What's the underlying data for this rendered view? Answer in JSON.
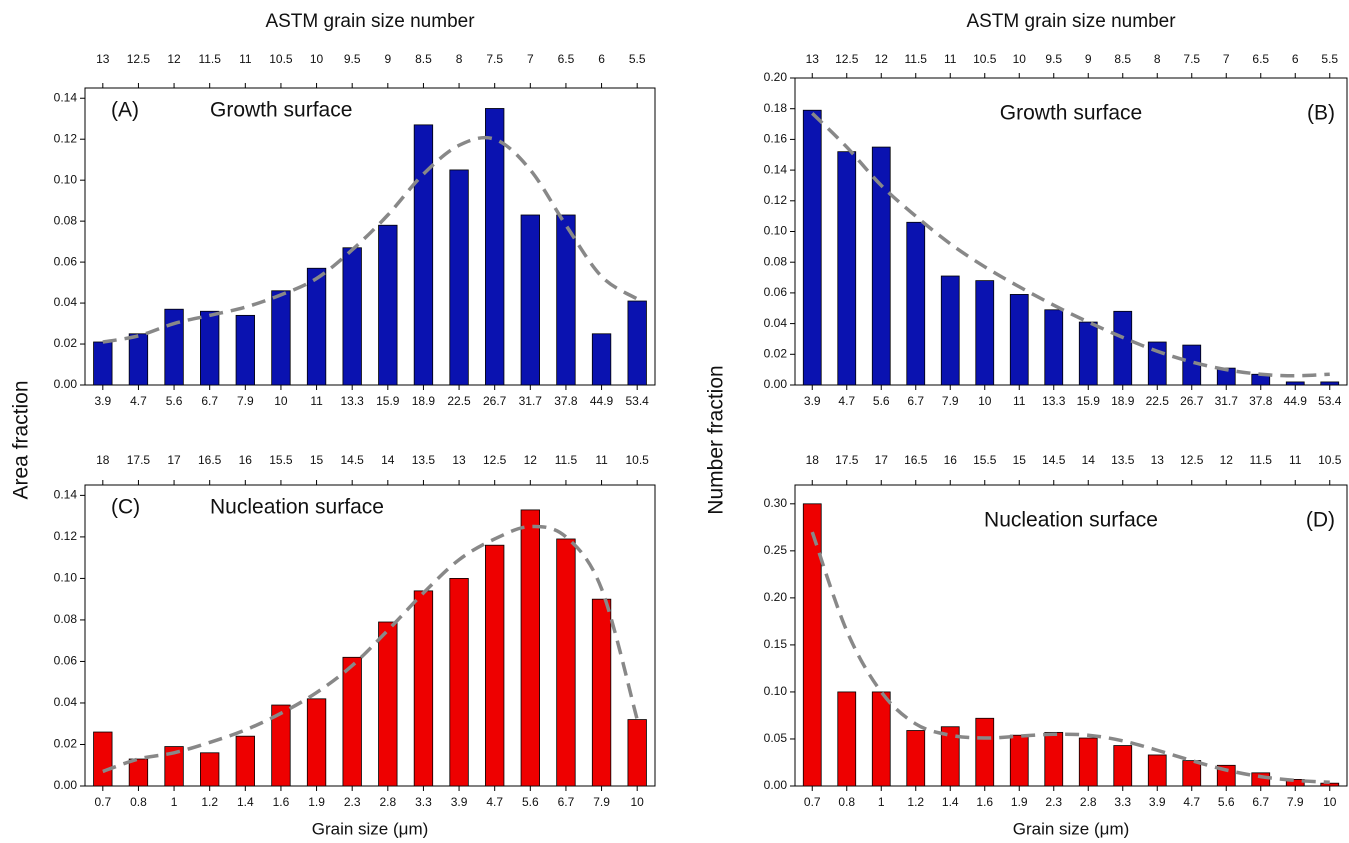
{
  "chart_data": [
    {
      "type": "bar",
      "panel_label": "(A)",
      "annotation": "Growth surface",
      "label_side": "left",
      "x2_label": "ASTM grain size number",
      "ylabel": "Area fraction",
      "color": "#0a12b0",
      "categories": [
        "3.9",
        "4.7",
        "5.6",
        "6.7",
        "7.9",
        "10",
        "11",
        "13.3",
        "15.9",
        "18.9",
        "22.5",
        "26.7",
        "31.7",
        "37.8",
        "44.9",
        "53.4"
      ],
      "x2_categories": [
        "13",
        "12.5",
        "12",
        "11.5",
        "11",
        "10.5",
        "10",
        "9.5",
        "9",
        "8.5",
        "8",
        "7.5",
        "7",
        "6.5",
        "6",
        "5.5"
      ],
      "values": [
        0.021,
        0.025,
        0.037,
        0.036,
        0.034,
        0.046,
        0.057,
        0.067,
        0.078,
        0.127,
        0.105,
        0.135,
        0.083,
        0.083,
        0.025,
        0.041
      ],
      "fit_values": [
        0.021,
        0.024,
        0.03,
        0.034,
        0.038,
        0.044,
        0.052,
        0.066,
        0.083,
        0.103,
        0.117,
        0.12,
        0.105,
        0.078,
        0.053,
        0.042
      ],
      "ylim": [
        0,
        0.145
      ],
      "yticks": [
        {
          "value": 0,
          "label": "0.00"
        },
        {
          "value": 0.02,
          "label": "0.02"
        },
        {
          "value": 0.04,
          "label": "0.04"
        },
        {
          "value": 0.06,
          "label": "0.06"
        },
        {
          "value": 0.08,
          "label": "0.08"
        },
        {
          "value": 0.1,
          "label": "0.10"
        },
        {
          "value": 0.12,
          "label": "0.12"
        },
        {
          "value": 0.14,
          "label": "0.14"
        }
      ]
    },
    {
      "type": "bar",
      "panel_label": "(B)",
      "annotation": "Growth surface",
      "label_side": "right",
      "x2_label": "ASTM grain size number",
      "ylabel": "Number fraction",
      "color": "#0a12b0",
      "categories": [
        "3.9",
        "4.7",
        "5.6",
        "6.7",
        "7.9",
        "10",
        "11",
        "13.3",
        "15.9",
        "18.9",
        "22.5",
        "26.7",
        "31.7",
        "37.8",
        "44.9",
        "53.4"
      ],
      "x2_categories": [
        "13",
        "12.5",
        "12",
        "11.5",
        "11",
        "10.5",
        "10",
        "9.5",
        "9",
        "8.5",
        "8",
        "7.5",
        "7",
        "6.5",
        "6",
        "5.5"
      ],
      "values": [
        0.179,
        0.152,
        0.155,
        0.106,
        0.071,
        0.068,
        0.059,
        0.049,
        0.041,
        0.048,
        0.028,
        0.026,
        0.011,
        0.007,
        0.002,
        0.002
      ],
      "fit_values": [
        0.177,
        0.155,
        0.13,
        0.11,
        0.092,
        0.077,
        0.064,
        0.052,
        0.041,
        0.031,
        0.022,
        0.015,
        0.01,
        0.007,
        0.006,
        0.007
      ],
      "ylim": [
        0,
        0.2
      ],
      "yticks": [
        {
          "value": 0,
          "label": "0.00"
        },
        {
          "value": 0.02,
          "label": "0.02"
        },
        {
          "value": 0.04,
          "label": "0.04"
        },
        {
          "value": 0.06,
          "label": "0.06"
        },
        {
          "value": 0.08,
          "label": "0.08"
        },
        {
          "value": 0.1,
          "label": "0.10"
        },
        {
          "value": 0.12,
          "label": "0.12"
        },
        {
          "value": 0.14,
          "label": "0.14"
        },
        {
          "value": 0.16,
          "label": "0.16"
        },
        {
          "value": 0.18,
          "label": "0.18"
        },
        {
          "value": 0.2,
          "label": "0.20"
        }
      ]
    },
    {
      "type": "bar",
      "panel_label": "(C)",
      "annotation": "Nucleation surface",
      "label_side": "left",
      "xlabel": "Grain size (μm)",
      "color": "#ee0000",
      "categories": [
        "0.7",
        "0.8",
        "1",
        "1.2",
        "1.4",
        "1.6",
        "1.9",
        "2.3",
        "2.8",
        "3.3",
        "3.9",
        "4.7",
        "5.6",
        "6.7",
        "7.9",
        "10"
      ],
      "x2_categories": [
        "18",
        "17.5",
        "17",
        "16.5",
        "16",
        "15.5",
        "15",
        "14.5",
        "14",
        "13.5",
        "13",
        "12.5",
        "12",
        "11.5",
        "11",
        "10.5"
      ],
      "values": [
        0.026,
        0.013,
        0.019,
        0.016,
        0.024,
        0.039,
        0.042,
        0.062,
        0.079,
        0.094,
        0.1,
        0.116,
        0.133,
        0.119,
        0.09,
        0.032
      ],
      "fit_values": [
        0.007,
        0.013,
        0.016,
        0.021,
        0.027,
        0.035,
        0.045,
        0.058,
        0.075,
        0.093,
        0.109,
        0.119,
        0.125,
        0.12,
        0.095,
        0.032
      ],
      "ylim": [
        0,
        0.145
      ],
      "yticks": [
        {
          "value": 0,
          "label": "0.00"
        },
        {
          "value": 0.02,
          "label": "0.02"
        },
        {
          "value": 0.04,
          "label": "0.04"
        },
        {
          "value": 0.06,
          "label": "0.06"
        },
        {
          "value": 0.08,
          "label": "0.08"
        },
        {
          "value": 0.1,
          "label": "0.10"
        },
        {
          "value": 0.12,
          "label": "0.12"
        },
        {
          "value": 0.14,
          "label": "0.14"
        }
      ]
    },
    {
      "type": "bar",
      "panel_label": "(D)",
      "annotation": "Nucleation surface",
      "label_side": "right",
      "xlabel": "Grain size (μm)",
      "color": "#ee0000",
      "categories": [
        "0.7",
        "0.8",
        "1",
        "1.2",
        "1.4",
        "1.6",
        "1.9",
        "2.3",
        "2.8",
        "3.3",
        "3.9",
        "4.7",
        "5.6",
        "6.7",
        "7.9",
        "10"
      ],
      "x2_categories": [
        "18",
        "17.5",
        "17",
        "16.5",
        "16",
        "15.5",
        "15",
        "14.5",
        "14",
        "13.5",
        "13",
        "12.5",
        "12",
        "11.5",
        "11",
        "10.5"
      ],
      "values": [
        0.3,
        0.1,
        0.1,
        0.059,
        0.063,
        0.072,
        0.054,
        0.057,
        0.051,
        0.043,
        0.033,
        0.027,
        0.022,
        0.014,
        0.007,
        0.003
      ],
      "fit_values": [
        0.27,
        0.165,
        0.1,
        0.066,
        0.054,
        0.051,
        0.053,
        0.055,
        0.054,
        0.048,
        0.038,
        0.027,
        0.017,
        0.01,
        0.006,
        0.004
      ],
      "ylim": [
        0,
        0.32
      ],
      "yticks": [
        {
          "value": 0,
          "label": "0.00"
        },
        {
          "value": 0.05,
          "label": "0.05"
        },
        {
          "value": 0.1,
          "label": "0.10"
        },
        {
          "value": 0.15,
          "label": "0.15"
        },
        {
          "value": 0.2,
          "label": "0.20"
        },
        {
          "value": 0.25,
          "label": "0.25"
        },
        {
          "value": 0.3,
          "label": "0.30"
        }
      ]
    }
  ]
}
